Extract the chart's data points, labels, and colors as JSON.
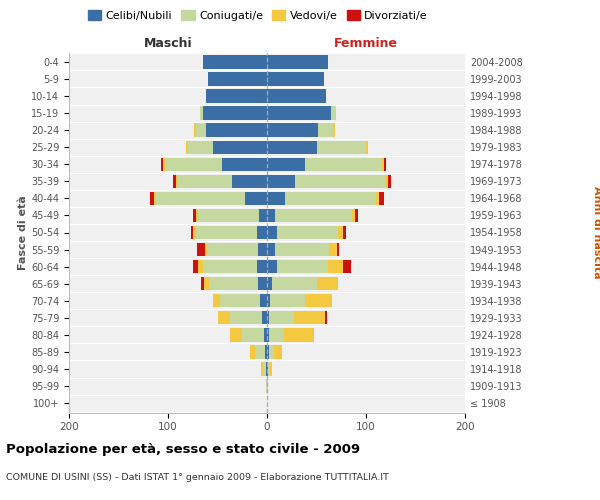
{
  "age_groups": [
    "100+",
    "95-99",
    "90-94",
    "85-89",
    "80-84",
    "75-79",
    "70-74",
    "65-69",
    "60-64",
    "55-59",
    "50-54",
    "45-49",
    "40-44",
    "35-39",
    "30-34",
    "25-29",
    "20-24",
    "15-19",
    "10-14",
    "5-9",
    "0-4"
  ],
  "birth_years": [
    "≤ 1908",
    "1909-1913",
    "1914-1918",
    "1919-1923",
    "1924-1928",
    "1929-1933",
    "1934-1938",
    "1939-1943",
    "1944-1948",
    "1949-1953",
    "1954-1958",
    "1959-1963",
    "1964-1968",
    "1969-1973",
    "1974-1978",
    "1979-1983",
    "1984-1988",
    "1989-1993",
    "1994-1998",
    "1999-2003",
    "2004-2008"
  ],
  "male_celibi": [
    0,
    0,
    1,
    2,
    3,
    5,
    7,
    9,
    10,
    9,
    10,
    8,
    22,
    35,
    45,
    55,
    62,
    65,
    62,
    60,
    65
  ],
  "male_coniugati": [
    0,
    1,
    3,
    10,
    22,
    32,
    40,
    50,
    55,
    52,
    62,
    62,
    90,
    55,
    58,
    25,
    10,
    3,
    0,
    0,
    0
  ],
  "male_vedovi": [
    0,
    0,
    2,
    5,
    12,
    12,
    8,
    5,
    5,
    2,
    3,
    2,
    2,
    2,
    2,
    2,
    2,
    0,
    0,
    0,
    0
  ],
  "male_divorziati": [
    0,
    0,
    0,
    0,
    0,
    0,
    0,
    3,
    5,
    8,
    2,
    3,
    4,
    3,
    2,
    0,
    0,
    0,
    0,
    0,
    0
  ],
  "fem_nubili": [
    0,
    0,
    1,
    2,
    2,
    2,
    3,
    5,
    10,
    8,
    10,
    8,
    18,
    28,
    38,
    50,
    52,
    65,
    60,
    58,
    62
  ],
  "fem_coniugate": [
    0,
    1,
    2,
    5,
    15,
    25,
    35,
    45,
    52,
    55,
    62,
    78,
    92,
    92,
    78,
    50,
    15,
    5,
    0,
    0,
    0
  ],
  "fem_vedove": [
    0,
    0,
    2,
    8,
    30,
    32,
    28,
    22,
    15,
    8,
    5,
    3,
    3,
    2,
    2,
    2,
    2,
    0,
    0,
    0,
    0
  ],
  "fem_divorziate": [
    0,
    0,
    0,
    0,
    0,
    2,
    0,
    0,
    8,
    2,
    3,
    3,
    5,
    3,
    2,
    0,
    0,
    0,
    0,
    0,
    0
  ],
  "colors": {
    "celibi": "#3a6ea5",
    "coniugati": "#c5d8a0",
    "vedovi": "#f5c842",
    "divorziati": "#cc1111"
  },
  "xlim": 200,
  "title": "Popolazione per età, sesso e stato civile - 2009",
  "subtitle": "COMUNE DI USINI (SS) - Dati ISTAT 1° gennaio 2009 - Elaborazione TUTTITALIA.IT",
  "legend_labels": [
    "Celibi/Nubili",
    "Coniugati/e",
    "Vedovi/e",
    "Divorziati/e"
  ],
  "ylabel_left": "Fasce di età",
  "ylabel_right": "Anni di nascita",
  "label_maschi": "Maschi",
  "label_femmine": "Femmine",
  "bg_color": "#f0f0f0"
}
